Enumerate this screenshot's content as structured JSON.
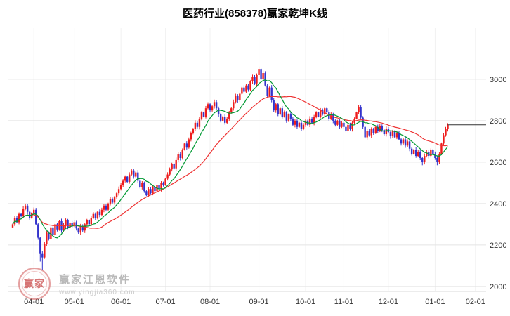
{
  "page": {
    "title": "医药行业(858378)赢家乾坤K线"
  },
  "watermark": {
    "logo_text": "赢家",
    "brand": "赢家江恩软件",
    "url": "www.yingjia360.com"
  },
  "chart_data": {
    "type": "candlestick",
    "title": "医药行业(858378)赢家乾坤K线",
    "name": "医药行业",
    "symbol": "858378",
    "ylabel": "",
    "xlabel": "",
    "y_ticks": [
      2000,
      2200,
      2400,
      2600,
      2800,
      3000
    ],
    "ylim": [
      1976,
      3247
    ],
    "x_ticks": [
      {
        "label": "04-01",
        "i": 10
      },
      {
        "label": "05-01",
        "i": 29
      },
      {
        "label": "06-01",
        "i": 51
      },
      {
        "label": "07-01",
        "i": 72
      },
      {
        "label": "08-01",
        "i": 93
      },
      {
        "label": "09-01",
        "i": 116
      },
      {
        "label": "10-01",
        "i": 138
      },
      {
        "label": "11-01",
        "i": 156
      },
      {
        "label": "12-01",
        "i": 177
      },
      {
        "label": "01-01",
        "i": 199
      },
      {
        "label": "02-01",
        "i": 218
      }
    ],
    "slots": 224,
    "grid": true,
    "legend_position": "none",
    "first_open": 2285,
    "closes": [
      2300,
      2330,
      2310,
      2350,
      2340,
      2375,
      2390,
      2360,
      2330,
      2355,
      2370,
      2300,
      2235,
      2160,
      2140,
      2205,
      2260,
      2230,
      2285,
      2250,
      2300,
      2275,
      2315,
      2270,
      2295,
      2320,
      2285,
      2305,
      2290,
      2310,
      2280,
      2260,
      2290,
      2270,
      2300,
      2320,
      2300,
      2330,
      2350,
      2330,
      2360,
      2345,
      2370,
      2390,
      2370,
      2400,
      2420,
      2405,
      2430,
      2450,
      2470,
      2490,
      2510,
      2530,
      2505,
      2540,
      2560,
      2530,
      2550,
      2510,
      2480,
      2500,
      2460,
      2440,
      2470,
      2450,
      2480,
      2460,
      2490,
      2470,
      2500,
      2490,
      2520,
      2540,
      2565,
      2590,
      2570,
      2610,
      2640,
      2620,
      2660,
      2690,
      2670,
      2710,
      2740,
      2760,
      2790,
      2770,
      2810,
      2840,
      2820,
      2860,
      2880,
      2850,
      2870,
      2890,
      2860,
      2830,
      2800,
      2820,
      2790,
      2810,
      2840,
      2860,
      2890,
      2920,
      2900,
      2930,
      2960,
      2940,
      2970,
      2950,
      2990,
      3010,
      2980,
      3020,
      3050,
      3000,
      3030,
      2970,
      2920,
      2960,
      2900,
      2850,
      2880,
      2830,
      2860,
      2820,
      2840,
      2800,
      2830,
      2810,
      2780,
      2800,
      2770,
      2790,
      2760,
      2780,
      2800,
      2780,
      2810,
      2790,
      2820,
      2840,
      2820,
      2850,
      2830,
      2860,
      2840,
      2810,
      2830,
      2800,
      2780,
      2800,
      2770,
      2790,
      2770,
      2750,
      2780,
      2760,
      2790,
      2810,
      2840,
      2865,
      2815,
      2770,
      2720,
      2750,
      2730,
      2760,
      2740,
      2770,
      2750,
      2775,
      2755,
      2735,
      2760,
      2745,
      2725,
      2750,
      2720,
      2740,
      2710,
      2690,
      2710,
      2680,
      2700,
      2665,
      2640,
      2660,
      2630,
      2650,
      2620,
      2600,
      2630,
      2650,
      2630,
      2660,
      2640,
      2620,
      2600,
      2640,
      2690,
      2730,
      2760,
      2780
    ],
    "wick_overrides": {
      "6": {
        "high": 2400
      },
      "13": {
        "low": 2120
      },
      "14": {
        "low": 2080
      },
      "116": {
        "high": 3062
      },
      "163": {
        "high": 2875
      },
      "193": {
        "low": 2585
      },
      "200": {
        "low": 2585
      }
    },
    "last_price": 2780,
    "ma_lines": [
      {
        "name": "MA10",
        "period": 10,
        "color_key": "ma_fast"
      },
      {
        "name": "MA30",
        "period": 30,
        "color_key": "ma_slow"
      }
    ],
    "colors": {
      "up": "#ee1c1c",
      "down": "#3333cc",
      "ma_fast": "#009933",
      "ma_slow": "#ee3333",
      "grid": "#e4e4e4",
      "grid_vertical": "#f1f1f1",
      "axis_text": "#333333",
      "axis_line": "#d8d8d8",
      "last_price_line": "#333333"
    }
  }
}
